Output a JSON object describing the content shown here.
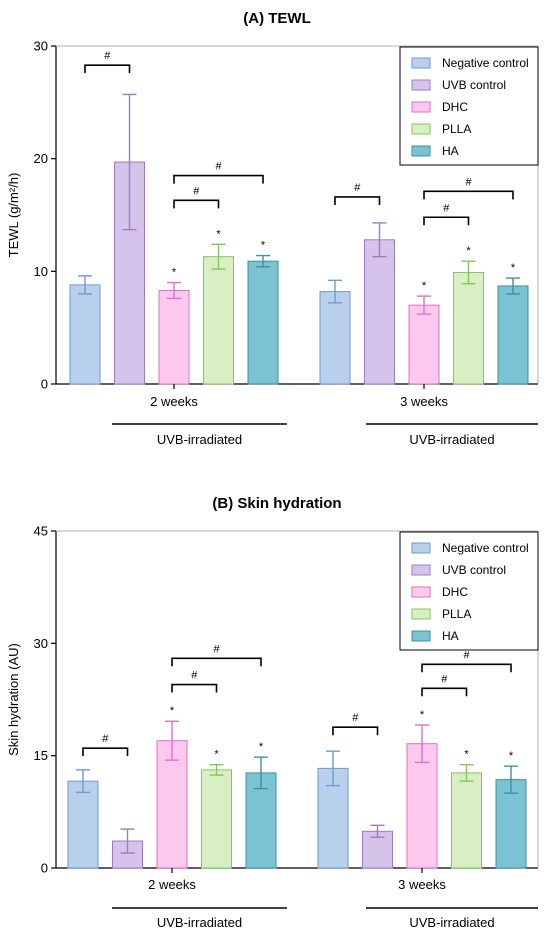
{
  "chart_data": [
    {
      "type": "bar",
      "title": "(A) TEWL",
      "ylabel": "TEWL (g/m²/h)",
      "ylim": [
        0,
        30
      ],
      "yticks": [
        0,
        10,
        20,
        30
      ],
      "grid": false,
      "legend_position": "top-right",
      "categories": [
        "2 weeks",
        "3 weeks"
      ],
      "group_annotation": "UVB-irradiated",
      "series": [
        {
          "name": "Negative control",
          "color": "#b8d0ec",
          "edge": "#6f9ad0",
          "values": [
            8.8,
            8.2
          ],
          "errors": [
            0.8,
            1.0
          ]
        },
        {
          "name": "UVB control",
          "color": "#d6c3ea",
          "edge": "#9a7cc8",
          "values": [
            19.7,
            12.8
          ],
          "errors": [
            6.0,
            1.5
          ]
        },
        {
          "name": "DHC",
          "color": "#fcc8ec",
          "edge": "#e06fcb",
          "values": [
            8.3,
            7.0
          ],
          "errors": [
            0.7,
            0.8
          ]
        },
        {
          "name": "PLLA",
          "color": "#d8efc3",
          "edge": "#86c45f",
          "values": [
            11.3,
            9.9
          ],
          "errors": [
            1.1,
            1.0
          ]
        },
        {
          "name": "HA",
          "color": "#7bc3d3",
          "edge": "#3f8fa6",
          "values": [
            10.9,
            8.7
          ],
          "errors": [
            0.5,
            0.7
          ]
        }
      ],
      "stars": [
        {
          "group": 0,
          "series": 2,
          "text": "*"
        },
        {
          "group": 0,
          "series": 3,
          "text": "*"
        },
        {
          "group": 0,
          "series": 4,
          "text": "*"
        },
        {
          "group": 1,
          "series": 2,
          "text": "*"
        },
        {
          "group": 1,
          "series": 3,
          "text": "*"
        },
        {
          "group": 1,
          "series": 4,
          "text": "*"
        }
      ],
      "brackets": [
        {
          "group": 0,
          "from": 0,
          "to": 1,
          "y": 28.3,
          "text": "#"
        },
        {
          "group": 0,
          "from": 2,
          "to": 3,
          "y": 16.3,
          "text": "#"
        },
        {
          "group": 0,
          "from": 2,
          "to": 4,
          "y": 18.5,
          "text": "#"
        },
        {
          "group": 1,
          "from": 0,
          "to": 1,
          "y": 16.6,
          "text": "#"
        },
        {
          "group": 1,
          "from": 2,
          "to": 3,
          "y": 14.8,
          "text": "#"
        },
        {
          "group": 1,
          "from": 2,
          "to": 4,
          "y": 17.1,
          "text": "#"
        }
      ]
    },
    {
      "type": "bar",
      "title": "(B) Skin hydration",
      "ylabel": "Skin hydration (AU)",
      "ylim": [
        0,
        45
      ],
      "yticks": [
        0,
        15,
        30,
        45
      ],
      "grid": false,
      "legend_position": "top-right",
      "categories": [
        "2 weeks",
        "3 weeks"
      ],
      "group_annotation": "UVB-irradiated",
      "series": [
        {
          "name": "Negative control",
          "color": "#b8d0ec",
          "edge": "#6f9ad0",
          "values": [
            11.6,
            13.3
          ],
          "errors": [
            1.5,
            2.3
          ]
        },
        {
          "name": "UVB control",
          "color": "#d6c3ea",
          "edge": "#9a7cc8",
          "values": [
            3.6,
            4.9
          ],
          "errors": [
            1.6,
            0.8
          ]
        },
        {
          "name": "DHC",
          "color": "#fcc8ec",
          "edge": "#e06fcb",
          "values": [
            17.0,
            16.6
          ],
          "errors": [
            2.6,
            2.5
          ]
        },
        {
          "name": "PLLA",
          "color": "#d8efc3",
          "edge": "#86c45f",
          "values": [
            13.1,
            12.7
          ],
          "errors": [
            0.7,
            1.1
          ]
        },
        {
          "name": "HA",
          "color": "#7bc3d3",
          "edge": "#3f8fa6",
          "values": [
            12.7,
            11.8
          ],
          "errors": [
            2.1,
            1.8
          ]
        }
      ],
      "stars": [
        {
          "group": 0,
          "series": 2,
          "text": "*"
        },
        {
          "group": 0,
          "series": 3,
          "text": "*"
        },
        {
          "group": 0,
          "series": 4,
          "text": "*"
        },
        {
          "group": 1,
          "series": 2,
          "text": "*"
        },
        {
          "group": 1,
          "series": 3,
          "text": "*"
        },
        {
          "group": 1,
          "series": 4,
          "text": "*"
        }
      ],
      "brackets": [
        {
          "group": 0,
          "from": 0,
          "to": 1,
          "y": 16.0,
          "text": "#"
        },
        {
          "group": 0,
          "from": 2,
          "to": 3,
          "y": 24.5,
          "text": "#"
        },
        {
          "group": 0,
          "from": 2,
          "to": 4,
          "y": 28.0,
          "text": "#"
        },
        {
          "group": 1,
          "from": 0,
          "to": 1,
          "y": 18.8,
          "text": "#"
        },
        {
          "group": 1,
          "from": 2,
          "to": 3,
          "y": 24.0,
          "text": "#"
        },
        {
          "group": 1,
          "from": 2,
          "to": 4,
          "y": 27.2,
          "text": "#"
        }
      ]
    }
  ]
}
